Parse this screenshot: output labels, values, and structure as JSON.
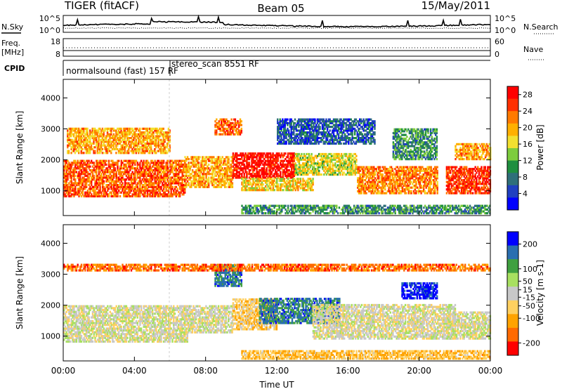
{
  "header": {
    "station": "TIGER (fitACF)",
    "beam": "Beam 05",
    "date": "15/May/2011"
  },
  "strip_panels": {
    "nsky_label": "N.Sky",
    "nsearch_label": "N.Search",
    "power_ticks_left": [
      "10^5",
      "10^0"
    ],
    "power_ticks_right": [
      "10^5",
      "10^0"
    ],
    "freq_label": "Freq.",
    "freq_unit": "[MHz]",
    "freq_ticks": [
      "18",
      "8"
    ],
    "nave_label": "Nave",
    "nave_ticks": [
      "60",
      "0"
    ],
    "cpid_label": "CPID",
    "cpid_segments": [
      {
        "label": "normalsound (fast) 157 RF",
        "start_hour": 0,
        "end_hour": 6
      },
      {
        "label": "stereo_scan 8551 RF",
        "start_hour": 6,
        "end_hour": 24
      }
    ]
  },
  "colors": {
    "power_scale": [
      "#0000ff",
      "#2040c0",
      "#2f6f7a",
      "#1f8f3f",
      "#7dcc3d",
      "#f2e030",
      "#ffb000",
      "#ff7a00",
      "#ff3000",
      "#ff0000"
    ],
    "velocity_scale": [
      "#ff0000",
      "#ff6a00",
      "#ffa300",
      "#ffd060",
      "#c8c8c8",
      "#a8e060",
      "#40a040",
      "#2a6fb0",
      "#0000ff"
    ]
  },
  "chart_data": [
    {
      "type": "heatmap",
      "title": "Power",
      "xlabel": "Time UT",
      "ylabel": "Slant Range [km]",
      "x_ticks": [
        "00:00",
        "04:00",
        "08:00",
        "12:00",
        "16:00",
        "20:00",
        "00:00"
      ],
      "xlim_hours": [
        0,
        24
      ],
      "ylim": [
        200,
        4600
      ],
      "y_ticks": [
        1000,
        2000,
        3000,
        4000
      ],
      "colorbar_label": "Power [dB]",
      "colorbar_ticks": [
        4,
        8,
        12,
        16,
        20,
        24,
        28
      ],
      "colorbar_range": [
        0,
        30
      ],
      "regions": [
        {
          "t0": 0.0,
          "t1": 6.8,
          "r0": 800,
          "r1": 2000,
          "value": 24
        },
        {
          "t0": 0.2,
          "t1": 6.0,
          "r0": 2200,
          "r1": 3000,
          "value": 20
        },
        {
          "t0": 6.8,
          "t1": 9.5,
          "r0": 1100,
          "r1": 2100,
          "value": 20
        },
        {
          "t0": 8.5,
          "t1": 10.0,
          "r0": 2800,
          "r1": 3300,
          "value": 24
        },
        {
          "t0": 9.5,
          "t1": 13.0,
          "r0": 1400,
          "r1": 2200,
          "value": 28
        },
        {
          "t0": 10.0,
          "t1": 14.0,
          "r0": 1000,
          "r1": 1400,
          "value": 18
        },
        {
          "t0": 13.0,
          "t1": 16.5,
          "r0": 1500,
          "r1": 2200,
          "value": 16
        },
        {
          "t0": 12.0,
          "t1": 17.5,
          "r0": 2500,
          "r1": 3300,
          "value": 6
        },
        {
          "t0": 16.5,
          "t1": 21.0,
          "r0": 900,
          "r1": 1800,
          "value": 22
        },
        {
          "t0": 18.5,
          "t1": 21.0,
          "r0": 2000,
          "r1": 3000,
          "value": 10
        },
        {
          "t0": 21.5,
          "t1": 24.0,
          "r0": 900,
          "r1": 1800,
          "value": 26
        },
        {
          "t0": 22.0,
          "t1": 24.0,
          "r0": 2000,
          "r1": 2500,
          "value": 20
        },
        {
          "t0": 10.0,
          "t1": 24.0,
          "r0": 250,
          "r1": 550,
          "value": 10
        }
      ]
    },
    {
      "type": "heatmap",
      "title": "Velocity",
      "xlabel": "Time UT",
      "ylabel": "Slant Range [km]",
      "x_ticks": [
        "00:00",
        "04:00",
        "08:00",
        "12:00",
        "16:00",
        "20:00",
        "00:00"
      ],
      "xlim_hours": [
        0,
        24
      ],
      "ylim": [
        200,
        4600
      ],
      "y_ticks": [
        1000,
        2000,
        3000,
        4000
      ],
      "colorbar_label": "Velocity [m s-1]",
      "colorbar_ticks": [
        200,
        100,
        50,
        15,
        -15,
        -50,
        -100,
        -200
      ],
      "colorbar_range": [
        -250,
        250
      ],
      "regions": [
        {
          "t0": 0.0,
          "t1": 7.0,
          "r0": 800,
          "r1": 2000,
          "value": 0
        },
        {
          "t0": 7.0,
          "t1": 9.5,
          "r0": 1100,
          "r1": 2000,
          "value": 0
        },
        {
          "t0": 9.5,
          "t1": 12.0,
          "r0": 1200,
          "r1": 2200,
          "value": -60
        },
        {
          "t0": 11.0,
          "t1": 15.5,
          "r0": 1400,
          "r1": 2200,
          "value": 150
        },
        {
          "t0": 14.0,
          "t1": 22.0,
          "r0": 900,
          "r1": 2000,
          "value": -5
        },
        {
          "t0": 8.5,
          "t1": 10.0,
          "r0": 2600,
          "r1": 3300,
          "value": 150
        },
        {
          "t0": 19.0,
          "t1": 21.0,
          "r0": 2200,
          "r1": 2700,
          "value": 220
        },
        {
          "t0": 21.5,
          "t1": 24.0,
          "r0": 900,
          "r1": 1800,
          "value": 0
        },
        {
          "t0": 0.0,
          "t1": 24.0,
          "r0": 3100,
          "r1": 3300,
          "value": -160
        },
        {
          "t0": 10.0,
          "t1": 24.0,
          "r0": 250,
          "r1": 550,
          "value": -80
        }
      ]
    }
  ]
}
